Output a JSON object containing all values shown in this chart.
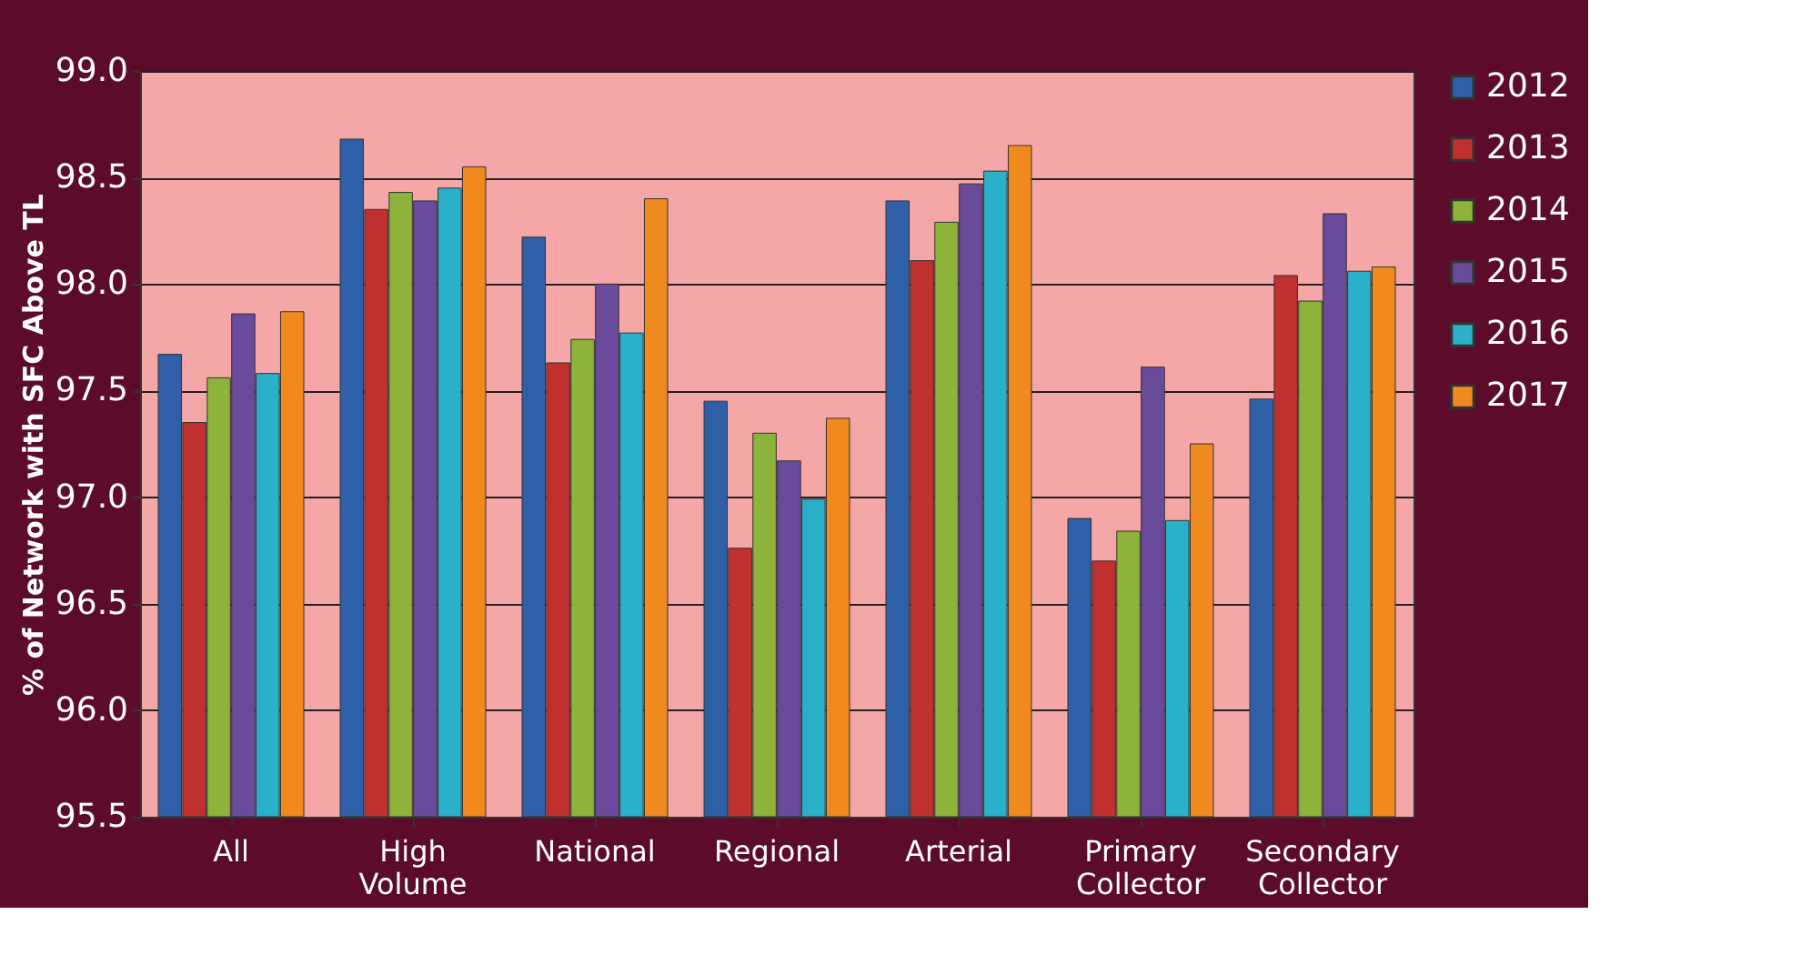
{
  "chart_data": {
    "type": "bar",
    "ylabel": "% of Network with SFC Above TL",
    "categories": [
      "All",
      "High Volume",
      "National",
      "Regional",
      "Arterial",
      "Primary Collector",
      "Secondary Collector"
    ],
    "series": [
      {
        "name": "2012",
        "color": "#2f5fa6",
        "values": [
          97.67,
          98.68,
          98.22,
          97.45,
          98.39,
          96.9,
          97.46
        ]
      },
      {
        "name": "2013",
        "color": "#c0302e",
        "values": [
          97.35,
          98.35,
          97.63,
          96.76,
          98.11,
          96.7,
          98.04
        ]
      },
      {
        "name": "2014",
        "color": "#8db33a",
        "values": [
          97.56,
          98.43,
          97.74,
          97.3,
          98.29,
          96.84,
          97.92
        ]
      },
      {
        "name": "2015",
        "color": "#6a4a9a",
        "values": [
          97.86,
          98.39,
          98.0,
          97.17,
          98.47,
          97.61,
          98.33
        ]
      },
      {
        "name": "2016",
        "color": "#2ab0c8",
        "values": [
          97.58,
          98.45,
          97.77,
          96.99,
          98.53,
          96.89,
          98.06
        ]
      },
      {
        "name": "2017",
        "color": "#f08a1e",
        "values": [
          97.87,
          98.55,
          98.4,
          97.37,
          98.65,
          97.25,
          98.08
        ]
      }
    ],
    "ylim": [
      95.5,
      99.0
    ],
    "yticks": [
      {
        "value": 95.5,
        "label": "95.5"
      },
      {
        "value": 96,
        "label": "96.0"
      },
      {
        "value": 96.5,
        "label": "96.5"
      },
      {
        "value": 97,
        "label": "97.0"
      },
      {
        "value": 97.5,
        "label": "97.5"
      },
      {
        "value": 98,
        "label": "98.0"
      },
      {
        "value": 98.5,
        "label": "98.5"
      },
      {
        "value": 99,
        "label": "99.0"
      }
    ],
    "grid": "y",
    "legend": "right"
  }
}
